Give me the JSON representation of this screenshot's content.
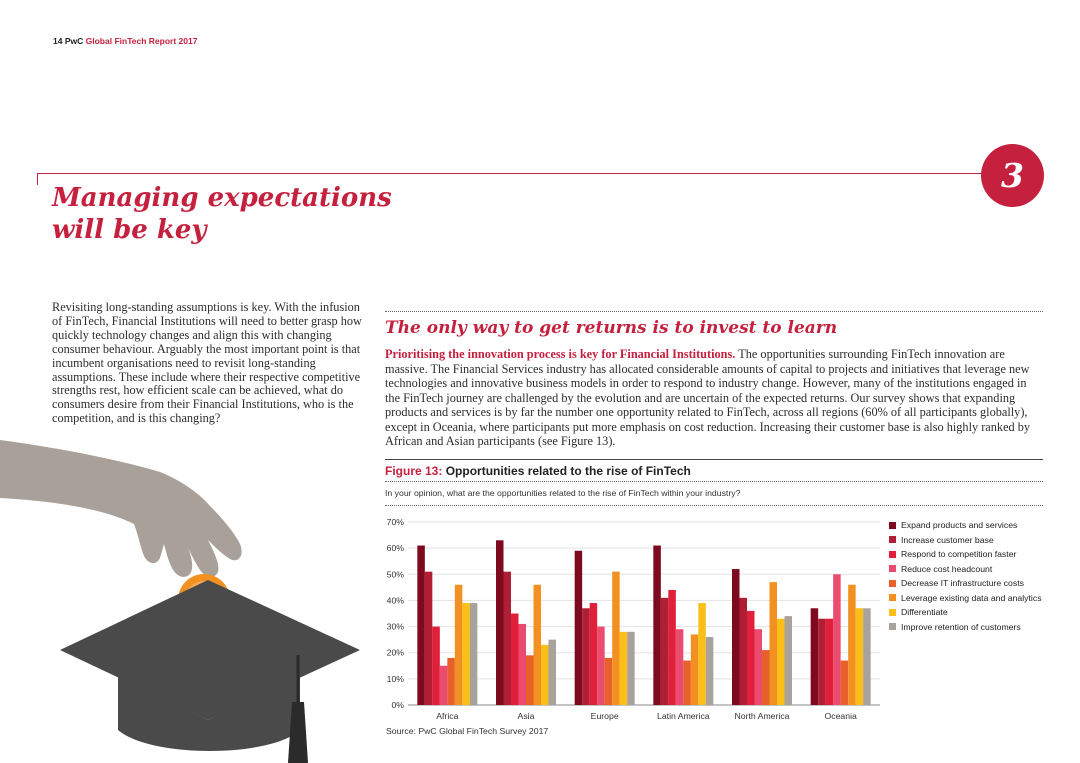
{
  "header": {
    "page_number": "14",
    "brand": "PwC",
    "report_title": "Global FinTech Report 2017"
  },
  "section": {
    "number": "3",
    "title_line1": "Managing expectations",
    "title_line2": "will be key"
  },
  "intro": "Revisiting long-standing assumptions is key. With the infusion of FinTech, Financial Institutions will need to better grasp how quickly technology changes and align this with changing consumer behaviour. Arguably the most important point is that incumbent organisations need to revisit long-standing assumptions. These include where their respective competitive strengths rest, how efficient scale can be achieved, what do consumers desire from their Financial Institutions, who is the competition, and is this changing?",
  "article": {
    "subtitle": "The only way to get returns is to invest to learn",
    "lead": "Prioritising the innovation process is key for Financial Institutions.",
    "body": " The opportunities surrounding FinTech innovation are massive. The Financial Services industry has allocated considerable amounts of capital to projects and initiatives that leverage new technologies and innovative business models in order to respond to industry change. However, many of the institutions engaged in the FinTech journey are challenged by the evolution and are uncertain of the expected returns. Our survey shows that expanding products and services is by far the number one opportunity related to FinTech, across all regions (60% of all participants globally), except in Oceania, where participants put more emphasis on cost reduction. Increasing their customer base is also highly ranked by African and Asian participants (see Figure 13)."
  },
  "figure": {
    "number": "Figure 13:",
    "title": "Opportunities related to the rise of FinTech",
    "question": "In your opinion, what are the opportunities related to the rise of FinTech within your industry?",
    "source": "Source: PwC Global FinTech Survey 2017"
  },
  "chart_data": {
    "type": "bar",
    "categories": [
      "Africa",
      "Asia",
      "Europe",
      "Latin America",
      "North America",
      "Oceania"
    ],
    "ylim": [
      0,
      70
    ],
    "yticks": [
      "0%",
      "10%",
      "20%",
      "30%",
      "40%",
      "50%",
      "60%",
      "70%"
    ],
    "xlabel": "",
    "ylabel": "",
    "grid": true,
    "legend_position": "right",
    "series": [
      {
        "name": "Expand products and services",
        "color": "#7d0a1e",
        "values": [
          61,
          63,
          59,
          61,
          52,
          37
        ]
      },
      {
        "name": "Increase customer base",
        "color": "#b01e35",
        "values": [
          51,
          51,
          37,
          41,
          41,
          33
        ]
      },
      {
        "name": "Respond to competition faster",
        "color": "#e0203a",
        "values": [
          30,
          35,
          39,
          44,
          36,
          33
        ]
      },
      {
        "name": "Reduce cost headcount",
        "color": "#ec4b70",
        "values": [
          15,
          31,
          30,
          29,
          29,
          50
        ]
      },
      {
        "name": "Decrease IT infrastructure costs",
        "color": "#e8612a",
        "values": [
          18,
          19,
          18,
          17,
          21,
          17
        ]
      },
      {
        "name": "Leverage existing data and analytics",
        "color": "#f29022",
        "values": [
          46,
          46,
          51,
          27,
          47,
          46
        ]
      },
      {
        "name": "Differentiate",
        "color": "#fbbf17",
        "values": [
          39,
          23,
          28,
          39,
          33,
          37
        ]
      },
      {
        "name": "Improve retention of customers",
        "color": "#a8a29c",
        "values": [
          39,
          25,
          28,
          26,
          34,
          37
        ]
      }
    ]
  },
  "illustration": {
    "hand_color": "#a8a099",
    "coin_color": "#f29022",
    "cap_color": "#4a4a4a",
    "tassel_color": "#2b2b2b"
  }
}
